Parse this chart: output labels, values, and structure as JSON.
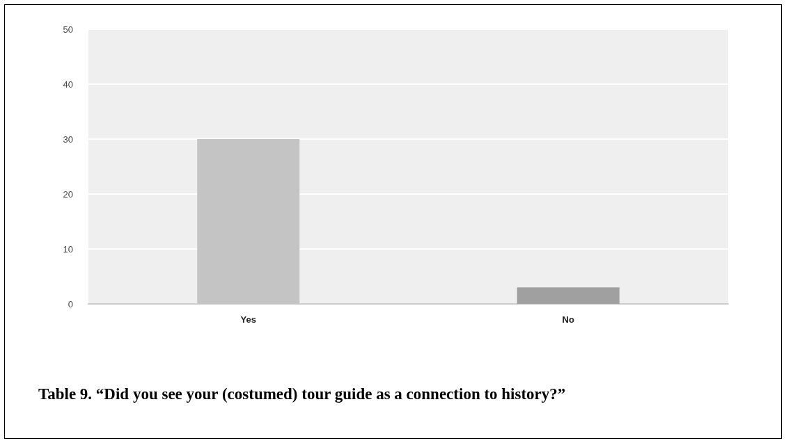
{
  "chart_data": {
    "type": "bar",
    "categories": [
      "Yes",
      "No"
    ],
    "values": [
      30,
      3
    ],
    "colors": [
      "#c4c4c4",
      "#a0a0a0"
    ],
    "ylim": [
      0,
      50
    ],
    "yticks": [
      0,
      10,
      20,
      30,
      40,
      50
    ],
    "grid": "y",
    "annotations": [
      "Table 9. “Did you see your (costumed) tour guide as a connection to history?”"
    ]
  }
}
